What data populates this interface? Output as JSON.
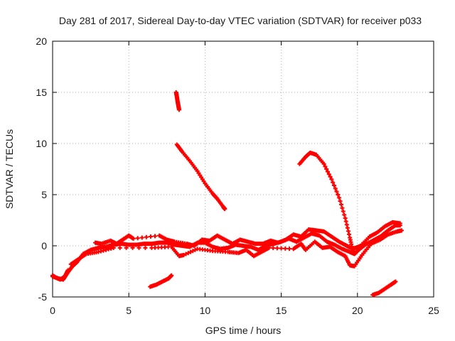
{
  "chart_data": {
    "type": "scatter",
    "title": "Day 281 of 2017, Sidereal Day-to-day VTEC variation (SDTVAR) for receiver p033",
    "xlabel": "GPS time / hours",
    "ylabel": "SDTVAR / TECUs",
    "xlim": [
      0,
      25
    ],
    "ylim": [
      -5,
      20
    ],
    "xticks": [
      0,
      5,
      10,
      15,
      20,
      25
    ],
    "yticks": [
      -5,
      0,
      5,
      10,
      15,
      20
    ],
    "grid": true,
    "marker": "+",
    "color": "#ff0000",
    "series": [
      {
        "name": "main-track",
        "points": [
          [
            0,
            -3.0
          ],
          [
            0.4,
            -3.2
          ],
          [
            0.7,
            -3.3
          ],
          [
            1.0,
            -2.6
          ],
          [
            1.3,
            -2.0
          ],
          [
            1.6,
            -1.6
          ],
          [
            2.0,
            -0.8
          ],
          [
            2.5,
            -0.4
          ],
          [
            3.0,
            -0.2
          ],
          [
            3.5,
            -0.1
          ],
          [
            4.0,
            0.1
          ],
          [
            4.5,
            0.2
          ],
          [
            5.0,
            0.1
          ],
          [
            5.5,
            0.1
          ],
          [
            6.0,
            0.2
          ],
          [
            6.5,
            0.2
          ],
          [
            7.0,
            0.3
          ],
          [
            7.5,
            0.3
          ],
          [
            8.0,
            0.1
          ],
          [
            8.5,
            0.0
          ],
          [
            9.0,
            -0.1
          ],
          [
            9.5,
            0.3
          ],
          [
            10.0,
            0.3
          ],
          [
            10.5,
            -0.1
          ],
          [
            11.0,
            -0.3
          ],
          [
            11.5,
            -0.2
          ],
          [
            12.0,
            0.1
          ],
          [
            12.5,
            0.0
          ],
          [
            13.0,
            -0.1
          ],
          [
            13.5,
            -0.4
          ],
          [
            14.0,
            0.0
          ],
          [
            14.5,
            0.2
          ],
          [
            15.0,
            0.4
          ],
          [
            15.5,
            0.7
          ],
          [
            16.0,
            0.4
          ],
          [
            16.5,
            0.8
          ],
          [
            17.0,
            1.2
          ],
          [
            17.5,
            1.0
          ],
          [
            18.0,
            0.4
          ],
          [
            18.5,
            0.1
          ],
          [
            19.0,
            -0.3
          ],
          [
            19.5,
            -0.6
          ],
          [
            19.8,
            -0.8
          ],
          [
            20.0,
            -0.5
          ],
          [
            20.5,
            0.1
          ],
          [
            21.0,
            0.5
          ],
          [
            21.5,
            0.9
          ],
          [
            22.0,
            1.5
          ],
          [
            22.5,
            2.0
          ],
          [
            22.8,
            2.0
          ]
        ]
      },
      {
        "name": "main-track-upper",
        "points": [
          [
            2.8,
            0.3
          ],
          [
            3.2,
            0.2
          ],
          [
            3.8,
            0.5
          ],
          [
            4.2,
            0.2
          ],
          [
            4.6,
            0.6
          ],
          [
            5.0,
            1.0
          ],
          [
            5.3,
            0.7
          ],
          [
            7.0,
            1.0
          ],
          [
            7.5,
            0.6
          ],
          [
            8.0,
            0.4
          ],
          [
            8.8,
            0.2
          ],
          [
            9.3,
            0.0
          ],
          [
            9.8,
            0.6
          ],
          [
            10.3,
            0.5
          ],
          [
            10.8,
            1.0
          ],
          [
            11.3,
            0.6
          ],
          [
            11.8,
            0.2
          ],
          [
            12.3,
            0.6
          ],
          [
            12.8,
            0.4
          ],
          [
            13.3,
            0.2
          ],
          [
            13.8,
            0.2
          ],
          [
            14.3,
            0.5
          ],
          [
            14.8,
            0.3
          ],
          [
            15.3,
            0.6
          ],
          [
            15.8,
            1.1
          ],
          [
            16.3,
            0.9
          ],
          [
            16.8,
            1.6
          ],
          [
            17.3,
            1.5
          ],
          [
            17.8,
            1.4
          ],
          [
            18.3,
            0.9
          ],
          [
            18.8,
            0.4
          ],
          [
            19.3,
            0.0
          ],
          [
            19.7,
            -0.3
          ],
          [
            20.2,
            0.0
          ],
          [
            20.8,
            0.9
          ],
          [
            21.3,
            1.3
          ],
          [
            21.8,
            1.9
          ],
          [
            22.3,
            2.3
          ],
          [
            22.8,
            2.2
          ]
        ]
      },
      {
        "name": "main-track-lower",
        "points": [
          [
            1.2,
            -1.8
          ],
          [
            1.7,
            -1.3
          ],
          [
            2.2,
            -0.8
          ],
          [
            3.0,
            -0.6
          ],
          [
            4.0,
            -0.2
          ],
          [
            6.5,
            -0.2
          ],
          [
            7.8,
            -0.1
          ],
          [
            8.3,
            -1.0
          ],
          [
            8.6,
            -0.9
          ],
          [
            9.5,
            -0.3
          ],
          [
            10.5,
            -0.5
          ],
          [
            11.5,
            -0.6
          ],
          [
            12.2,
            -0.7
          ],
          [
            12.7,
            -0.4
          ],
          [
            13.2,
            -1.0
          ],
          [
            13.7,
            -0.6
          ],
          [
            14.2,
            -0.2
          ],
          [
            15.8,
            -0.3
          ],
          [
            16.3,
            0.2
          ],
          [
            16.6,
            -0.4
          ],
          [
            17.2,
            0.4
          ],
          [
            17.7,
            -0.2
          ],
          [
            18.2,
            -0.1
          ],
          [
            18.7,
            -0.6
          ],
          [
            19.2,
            -1.0
          ],
          [
            19.5,
            -1.9
          ],
          [
            19.8,
            -2.0
          ],
          [
            20.3,
            -0.9
          ],
          [
            20.9,
            0.2
          ],
          [
            21.5,
            0.6
          ],
          [
            22.0,
            1.1
          ],
          [
            22.6,
            1.4
          ],
          [
            22.9,
            1.5
          ]
        ]
      },
      {
        "name": "descending-arc-1",
        "points": [
          [
            8.15,
            9.9
          ],
          [
            8.5,
            9.2
          ],
          [
            9.0,
            8.3
          ],
          [
            9.5,
            7.3
          ],
          [
            10.0,
            6.1
          ],
          [
            10.5,
            5.1
          ],
          [
            10.8,
            4.6
          ],
          [
            11.2,
            3.8
          ],
          [
            11.3,
            3.6
          ]
        ]
      },
      {
        "name": "descending-arc-2",
        "points": [
          [
            16.2,
            8.0
          ],
          [
            16.6,
            8.7
          ],
          [
            16.9,
            9.1
          ],
          [
            17.3,
            8.9
          ],
          [
            17.8,
            8.0
          ],
          [
            18.3,
            6.5
          ],
          [
            18.8,
            4.7
          ],
          [
            19.2,
            2.7
          ],
          [
            19.5,
            0.8
          ],
          [
            19.7,
            -0.5
          ]
        ]
      },
      {
        "name": "short-segment-top",
        "points": [
          [
            8.1,
            15.0
          ],
          [
            8.15,
            14.6
          ],
          [
            8.2,
            14.1
          ],
          [
            8.25,
            13.7
          ],
          [
            8.3,
            13.3
          ]
        ]
      },
      {
        "name": "bottom-segment-1",
        "points": [
          [
            6.4,
            -4.0
          ],
          [
            6.8,
            -3.8
          ],
          [
            7.2,
            -3.5
          ],
          [
            7.6,
            -3.2
          ],
          [
            7.8,
            -2.9
          ]
        ]
      },
      {
        "name": "bottom-segment-2",
        "points": [
          [
            21.0,
            -4.8
          ],
          [
            21.4,
            -4.6
          ],
          [
            21.8,
            -4.2
          ],
          [
            22.2,
            -3.8
          ],
          [
            22.5,
            -3.5
          ]
        ]
      },
      {
        "name": "start-cluster",
        "points": [
          [
            0.0,
            -2.9
          ],
          [
            0.2,
            -3.1
          ],
          [
            0.5,
            -3.3
          ],
          [
            0.8,
            -3.0
          ],
          [
            1.0,
            -2.4
          ]
        ]
      }
    ]
  }
}
